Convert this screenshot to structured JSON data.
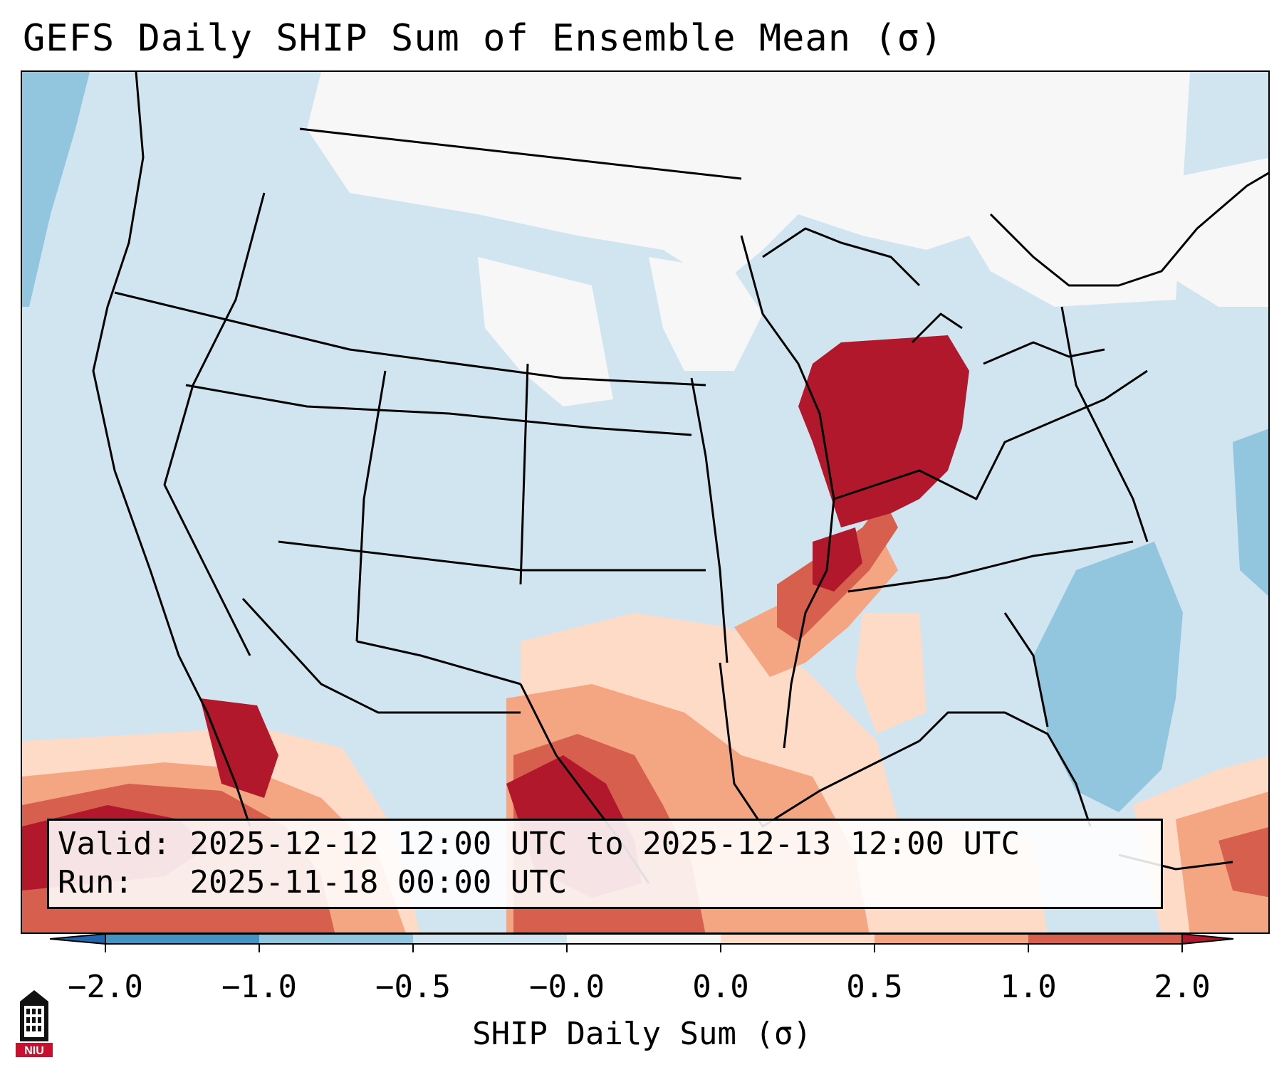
{
  "title": "GEFS Daily SHIP Sum of Ensemble Mean (σ)",
  "info": {
    "valid_label": "Valid:",
    "valid_value": "2025-12-12 12:00 UTC to 2025-12-13 12:00 UTC",
    "run_label": "Run:",
    "run_value": "2025-11-18 00:00 UTC"
  },
  "colorbar": {
    "label": "SHIP Daily Sum (σ)",
    "tick_labels": [
      "−2.0",
      "−1.0",
      "−0.5",
      "−0.0",
      "0.0",
      "0.5",
      "1.0",
      "2.0"
    ],
    "colors": [
      "#4393c3",
      "#92c5de",
      "#d1e5f0",
      "#f7f7f7",
      "#fddbc7",
      "#f4a582",
      "#d6604d",
      "#b2182b"
    ],
    "extend": "both"
  },
  "logo": {
    "text": "NIU",
    "icon": "niu-logo-icon"
  }
}
